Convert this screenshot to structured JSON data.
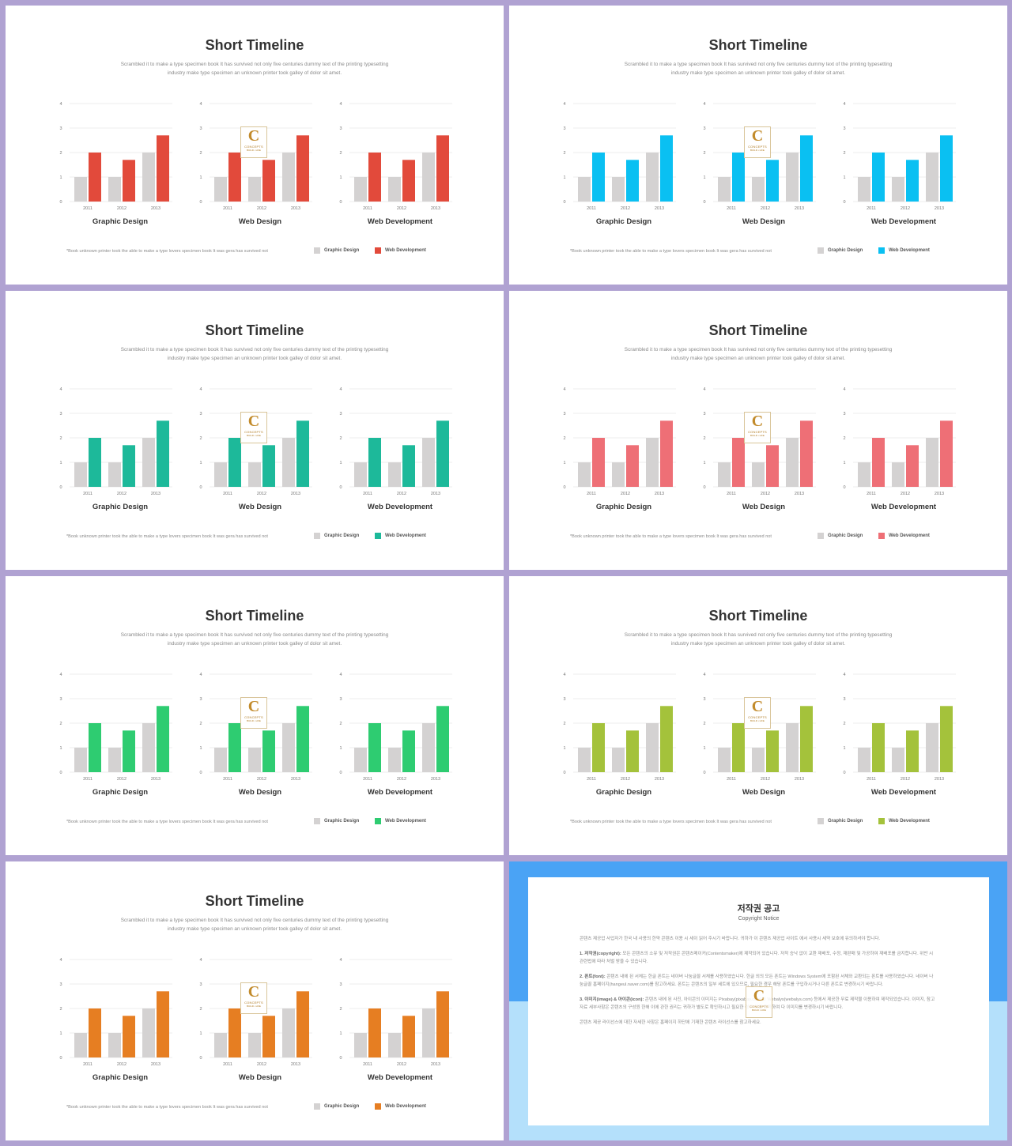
{
  "slides": [
    {
      "title": "Short Timeline",
      "accent": "#e24a3b"
    },
    {
      "title": "Short Timeline",
      "accent": "#0ac0f2"
    },
    {
      "title": "Short Timeline",
      "accent": "#1db99a"
    },
    {
      "title": "Short Timeline",
      "accent": "#ee6f76"
    },
    {
      "title": "Short Timeline",
      "accent": "#2ecc71"
    },
    {
      "title": "Short Timeline",
      "accent": "#a4c23b"
    },
    {
      "title": "Short Timeline",
      "accent": "#e67e22"
    }
  ],
  "subtitle_line1": "Scrambled it to make a type specimen book It has survived  not only five  centuries dummy text of the printing typesetting",
  "subtitle_line2": "industry make type specimen an unknown printer took galley of dolor sit amet.",
  "footnote": "*Book unknown  printer took the able to make a type lovers  specimen book It was gera has survived  not",
  "legend": {
    "series1": "Graphic Design",
    "series2": "Web Development"
  },
  "logo": {
    "letter": "C",
    "word": "CONCEPTS",
    "tag": "BUILD • LIFE"
  },
  "gray_color": "#d4d2d2",
  "chart_data": [
    {
      "type": "bar",
      "title": "Graphic Design",
      "categories": [
        "2011",
        "2012",
        "2013"
      ],
      "series": [
        {
          "name": "Graphic Design",
          "values": [
            1,
            1,
            2
          ]
        },
        {
          "name": "Web Development",
          "values": [
            2,
            1.7,
            2.7
          ]
        }
      ],
      "yticks": [
        "0",
        "1",
        "2",
        "3",
        "4"
      ],
      "ylim": [
        0,
        4
      ],
      "grid": true
    },
    {
      "type": "bar",
      "title": "Web Design",
      "categories": [
        "2011",
        "2012",
        "2013"
      ],
      "series": [
        {
          "name": "Graphic Design",
          "values": [
            1,
            1,
            2
          ]
        },
        {
          "name": "Web Development",
          "values": [
            2,
            1.7,
            2.7
          ]
        }
      ],
      "yticks": [
        "0",
        "1",
        "2",
        "3",
        "4"
      ],
      "ylim": [
        0,
        4
      ],
      "grid": true
    },
    {
      "type": "bar",
      "title": "Web Development",
      "categories": [
        "2011",
        "2012",
        "2013"
      ],
      "series": [
        {
          "name": "Graphic Design",
          "values": [
            1,
            1,
            2
          ]
        },
        {
          "name": "Web Development",
          "values": [
            2,
            1.7,
            2.7
          ]
        }
      ],
      "yticks": [
        "0",
        "1",
        "2",
        "3",
        "4"
      ],
      "ylim": [
        0,
        4
      ],
      "grid": true
    }
  ],
  "copyright": {
    "title": "저작권 공고",
    "subtitle": "Copyright Notice",
    "p1": "콘텐츠 제공업 사업자가 한국 내 사용의 한약 콘텐츠 이용 시 세이 읽어 주시기 바랍니다. 귀하가 이 콘텐츠 제공업 사이트 에서 사용시 세약 보호에 유의하셔야 합니다.",
    "p2_head": "1. 저작권(copyright):",
    "p2": " 모든 콘텐츠의 소유 및 저작권은 콘텐츠메이커(Contentsmaker)에 제작되어 있습니다. 저작 승낙 없이 교환 재배포, 수정, 재판매 및 가공하여 재배포를 금지합니다. 위반 시 관련법에 따라 처벌 받을 수 있습니다.",
    "p3_head": "2. 폰트(font):",
    "p3": " 콘텐츠 내에 된 서체는 한글 폰트는 네이버 나눔글꼴 서체를 사용하였습니다. 한글 외의 모든 폰트는 Windows System에 포함된 서체와 교환되는 폰트를 사용하였습니다. 네이버 나눔글꼴 홈페이지(hangeul.naver.com)를 참고하세요. 폰트는 콘텐츠의 일부 세트에 있으므로, 필요한 경우 해당 폰트를 구입하시거나 다른 폰트로 변경하시기 바랍니다.",
    "p4_head": "3. 이미지(image) & 아이콘(icon):",
    "p4": " 콘텐츠 내에 된 사진, 아이콘의 이미지는 Pixabay(pixabay.com)와 Webalys(webalys.com) 등에서 제공한 무료 제작물 이용하여 제작되었습니다. 이미지, 참고자료 세부사항은 콘텐츠의 구성원 한해 이에 관한 권리는 귀하가 별도로 확인하시고 필요한 경우 이를 취득하여 다 이미지를 변경하시기 바랍니다.",
    "p5": "콘텐츠 제공 라이선스에 대한 자세한 사항은 홈페이지 하단에 기재한 콘텐츠 라이선스를 참고하세요."
  }
}
